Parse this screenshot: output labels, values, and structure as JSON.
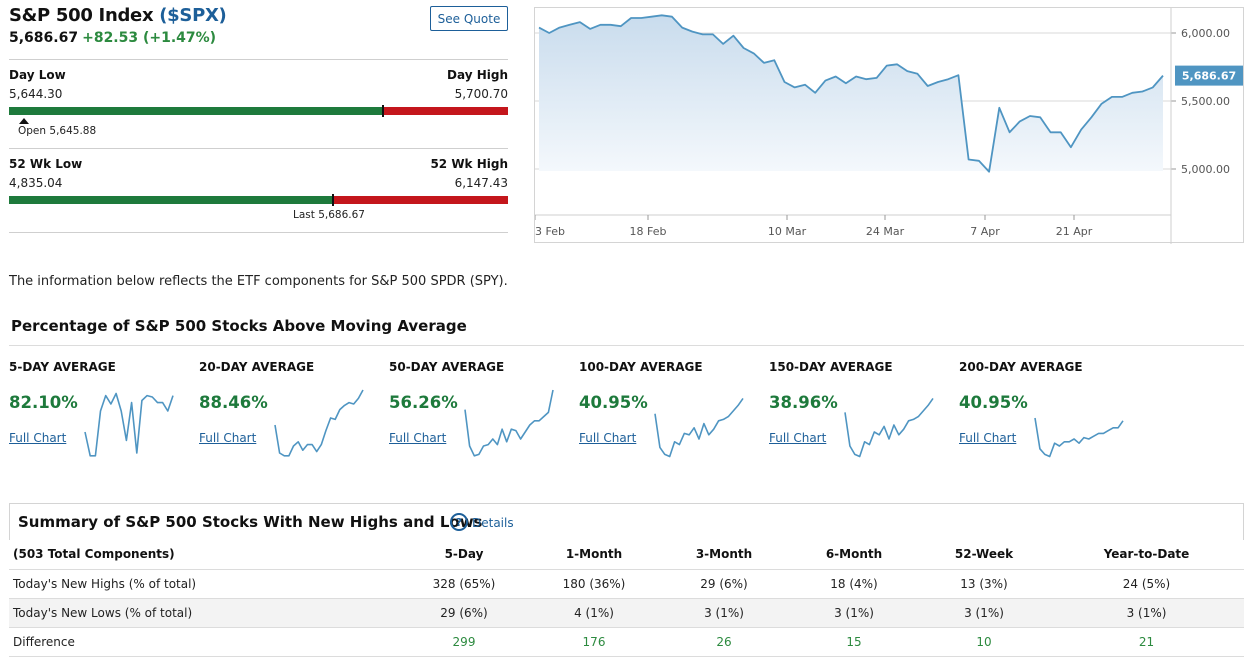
{
  "header": {
    "name": "S&P 500 Index",
    "symbol": "($SPX)",
    "last": "5,686.67",
    "change": "+82.53 (+1.47%)",
    "see_quote": "See Quote"
  },
  "day_range": {
    "low_label": "Day Low",
    "low": "5,644.30",
    "high_label": "Day High",
    "high": "5,700.70",
    "current_fraction": 0.75,
    "open_text": "Open 5,645.88",
    "open_fraction": 0.03
  },
  "week52_range": {
    "low_label": "52 Wk Low",
    "low": "4,835.04",
    "high_label": "52 Wk High",
    "high": "6,147.43",
    "current_fraction": 0.649,
    "last_text": "Last 5,686.67"
  },
  "colors": {
    "green": "#2c8a3f",
    "red": "#c4161c",
    "blue": "#1d5f99",
    "line": "#4f95c2"
  },
  "main_chart": {
    "y_ticks": [
      "6,000.00",
      "5,500.00",
      "5,000.00"
    ],
    "x_labels": [
      "3 Feb",
      "18 Feb",
      "10 Mar",
      "24 Mar",
      "7 Apr",
      "21 Apr"
    ],
    "last_badge": "5,686.67"
  },
  "chart_data": {
    "type": "area",
    "ylim": [
      4900,
      6280
    ],
    "y_ticks": [
      6000,
      5500,
      5000
    ],
    "values": [
      6040,
      6000,
      6040,
      6060,
      6080,
      6030,
      6060,
      6060,
      6050,
      6110,
      6110,
      6120,
      6130,
      6120,
      6040,
      6010,
      5990,
      5990,
      5920,
      5980,
      5890,
      5850,
      5780,
      5800,
      5640,
      5600,
      5620,
      5560,
      5650,
      5680,
      5630,
      5680,
      5660,
      5670,
      5760,
      5770,
      5720,
      5700,
      5610,
      5640,
      5660,
      5690,
      5070,
      5060,
      4980,
      5450,
      5270,
      5350,
      5390,
      5380,
      5270,
      5270,
      5160,
      5290,
      5380,
      5480,
      5530,
      5530,
      5560,
      5570,
      5600,
      5686.67
    ]
  },
  "note": "The information below reflects the ETF components for S&P 500 SPDR (SPY).",
  "moving_avg": {
    "title": "Percentage of S&P 500 Stocks Above Moving Average",
    "link_text": "Full Chart",
    "items": [
      {
        "label": "5-DAY AVERAGE",
        "value": "82.10%",
        "spark": [
          40,
          6,
          6,
          70,
          92,
          80,
          95,
          70,
          28,
          82,
          10,
          85,
          92,
          90,
          82,
          82,
          70,
          92
        ]
      },
      {
        "label": "20-DAY AVERAGE",
        "value": "88.46%",
        "spark": [
          50,
          10,
          6,
          6,
          20,
          26,
          14,
          22,
          22,
          12,
          22,
          42,
          60,
          58,
          72,
          78,
          82,
          80,
          88,
          100
        ]
      },
      {
        "label": "50-DAY AVERAGE",
        "value": "56.26%",
        "spark": [
          72,
          20,
          6,
          8,
          20,
          22,
          30,
          22,
          44,
          26,
          44,
          42,
          30,
          40,
          50,
          56,
          56,
          62,
          68,
          100
        ]
      },
      {
        "label": "100-DAY AVERAGE",
        "value": "40.95%",
        "spark": [
          66,
          18,
          8,
          5,
          26,
          22,
          38,
          36,
          46,
          30,
          52,
          36,
          44,
          56,
          58,
          62,
          70,
          78,
          88
        ]
      },
      {
        "label": "150-DAY AVERAGE",
        "value": "38.96%",
        "spark": [
          68,
          20,
          8,
          5,
          26,
          22,
          40,
          36,
          48,
          30,
          50,
          36,
          44,
          56,
          58,
          62,
          70,
          78,
          88
        ]
      },
      {
        "label": "200-DAY AVERAGE",
        "value": "40.95%",
        "spark": [
          60,
          16,
          8,
          5,
          24,
          20,
          26,
          26,
          30,
          24,
          32,
          30,
          34,
          38,
          38,
          42,
          46,
          46,
          56
        ]
      }
    ]
  },
  "summary": {
    "title": "Summary of S&P 500 Stocks With New Highs and Lows",
    "details": "Details",
    "columns": [
      "(503 Total Components)",
      "5-Day",
      "1-Month",
      "3-Month",
      "6-Month",
      "52-Week",
      "Year-to-Date"
    ],
    "rows": [
      [
        "Today's New Highs (% of total)",
        "328 (65%)",
        "180 (36%)",
        "29 (6%)",
        "18 (4%)",
        "13 (3%)",
        "24 (5%)"
      ],
      [
        "Today's New Lows (% of total)",
        "29 (6%)",
        "4 (1%)",
        "3 (1%)",
        "3 (1%)",
        "3 (1%)",
        "3 (1%)"
      ],
      [
        "Difference",
        "299",
        "176",
        "26",
        "15",
        "10",
        "21"
      ]
    ]
  }
}
